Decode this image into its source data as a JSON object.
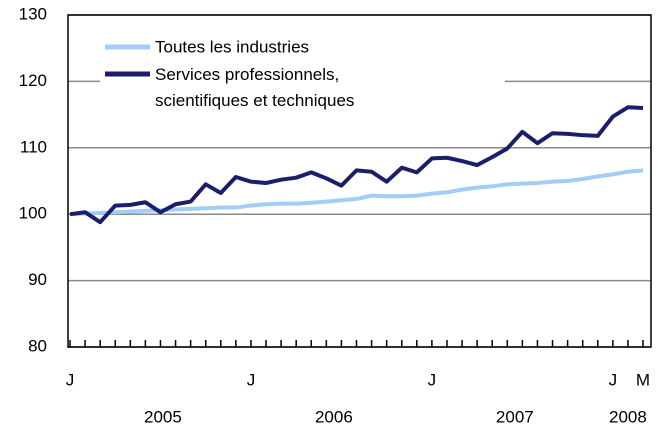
{
  "chart_data": {
    "type": "line",
    "categories": [
      "J",
      null,
      null,
      null,
      null,
      null,
      null,
      null,
      null,
      null,
      null,
      null,
      "J",
      null,
      null,
      null,
      null,
      null,
      null,
      null,
      null,
      null,
      null,
      null,
      "J",
      null,
      null,
      null,
      null,
      null,
      null,
      null,
      null,
      null,
      null,
      null,
      "J",
      null,
      "M"
    ],
    "years": [
      "2005",
      "2006",
      "2007",
      "2008"
    ],
    "series": [
      {
        "name": "Toutes les industries",
        "color": "#a3cdf5",
        "values": [
          100.0,
          100.1,
          100.2,
          100.3,
          100.4,
          100.5,
          100.6,
          100.7,
          100.8,
          100.9,
          101.0,
          101.0,
          101.3,
          101.5,
          101.6,
          101.6,
          101.7,
          101.9,
          102.1,
          102.3,
          102.8,
          102.7,
          102.7,
          102.8,
          103.1,
          103.3,
          103.7,
          104.0,
          104.2,
          104.5,
          104.6,
          104.7,
          104.9,
          105.0,
          105.3,
          105.7,
          106.0,
          106.4,
          106.6
        ]
      },
      {
        "name": "Services professionnels, scientifiques et techniques",
        "color": "#1b1f6b",
        "values": [
          100.0,
          100.3,
          98.8,
          101.3,
          101.4,
          101.8,
          100.3,
          101.5,
          101.9,
          104.5,
          103.2,
          105.6,
          104.9,
          104.7,
          105.2,
          105.5,
          106.3,
          105.4,
          104.3,
          106.6,
          106.4,
          104.9,
          107.0,
          106.3,
          108.4,
          108.5,
          108.0,
          107.4,
          108.6,
          109.9,
          112.4,
          110.7,
          112.2,
          112.1,
          111.9,
          111.8,
          114.7,
          116.1,
          116.0
        ]
      }
    ],
    "ylim": [
      80,
      130
    ],
    "yticks": [
      80,
      90,
      100,
      110,
      120,
      130
    ],
    "grid": true
  }
}
